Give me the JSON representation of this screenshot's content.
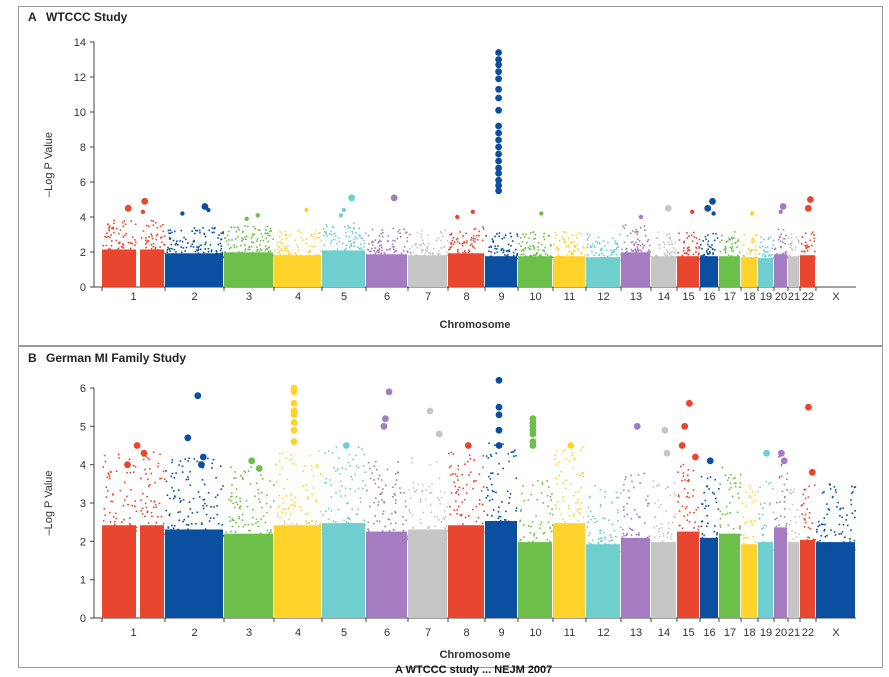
{
  "chart_data": [
    {
      "type": "scatter",
      "letter": "A",
      "title": "WTCCC Study",
      "xlabel": "Chromosome",
      "ylabel": "–Log P Value",
      "ylim": [
        0,
        14
      ],
      "yticks": [
        0,
        2,
        4,
        6,
        8,
        10,
        12,
        14
      ],
      "categories": [
        "1",
        "2",
        "3",
        "4",
        "5",
        "6",
        "7",
        "8",
        "9",
        "10",
        "11",
        "12",
        "13",
        "14",
        "15",
        "16",
        "17",
        "18",
        "19",
        "20",
        "21",
        "22",
        "X"
      ],
      "background_max": [
        3.9,
        3.5,
        3.6,
        3.3,
        3.8,
        3.4,
        3.3,
        3.5,
        3.2,
        3.2,
        3.2,
        3.1,
        3.6,
        3.2,
        3.2,
        3.2,
        3.2,
        3.1,
        3.0,
        3.4,
        3.2,
        3.3,
        0
      ],
      "peaks": [
        {
          "chromosome": "1",
          "values": [
            4.9,
            4.5,
            4.3
          ]
        },
        {
          "chromosome": "2",
          "values": [
            4.6,
            4.4,
            4.2
          ]
        },
        {
          "chromosome": "3",
          "values": [
            4.1,
            3.9
          ]
        },
        {
          "chromosome": "4",
          "values": [
            4.4
          ]
        },
        {
          "chromosome": "5",
          "values": [
            5.1,
            4.4,
            4.1
          ]
        },
        {
          "chromosome": "6",
          "values": [
            5.1
          ]
        },
        {
          "chromosome": "8",
          "values": [
            4.3,
            4.0
          ]
        },
        {
          "chromosome": "9",
          "values": [
            13.4,
            13.0,
            12.7,
            12.3,
            11.9,
            11.3,
            10.8,
            10.1,
            9.2,
            8.8,
            8.4,
            8.0,
            7.6,
            7.2,
            6.8,
            6.5,
            6.1,
            5.8,
            5.5
          ]
        },
        {
          "chromosome": "10",
          "values": [
            4.2
          ]
        },
        {
          "chromosome": "13",
          "values": [
            4.0
          ]
        },
        {
          "chromosome": "14",
          "values": [
            4.5
          ]
        },
        {
          "chromosome": "15",
          "values": [
            4.3
          ]
        },
        {
          "chromosome": "16",
          "values": [
            4.9,
            4.5,
            4.2
          ]
        },
        {
          "chromosome": "18",
          "values": [
            4.2
          ]
        },
        {
          "chromosome": "20",
          "values": [
            4.6,
            4.3
          ]
        },
        {
          "chromosome": "22",
          "values": [
            5.0,
            4.5
          ]
        }
      ]
    },
    {
      "type": "scatter",
      "letter": "B",
      "title": "German MI Family Study",
      "xlabel": "Chromosome",
      "ylabel": "–Log P Value",
      "ylim": [
        0,
        6
      ],
      "yticks": [
        0,
        1,
        2,
        3,
        4,
        5,
        6
      ],
      "categories": [
        "1",
        "2",
        "3",
        "4",
        "5",
        "6",
        "7",
        "8",
        "9",
        "10",
        "11",
        "12",
        "13",
        "14",
        "15",
        "16",
        "17",
        "18",
        "19",
        "20",
        "21",
        "22",
        "X"
      ],
      "background_max": [
        4.4,
        4.2,
        4.0,
        4.4,
        4.5,
        4.1,
        4.2,
        4.4,
        4.6,
        3.6,
        4.5,
        3.5,
        3.8,
        3.6,
        4.1,
        3.8,
        4.0,
        3.5,
        3.6,
        4.3,
        3.6,
        3.7,
        3.6
      ],
      "peaks": [
        {
          "chromosome": "1",
          "values": [
            4.5,
            4.3,
            4.0
          ]
        },
        {
          "chromosome": "2",
          "values": [
            5.8,
            4.7,
            4.2,
            4.0
          ]
        },
        {
          "chromosome": "3",
          "values": [
            4.1,
            3.9
          ]
        },
        {
          "chromosome": "4",
          "values": [
            6.0,
            5.9,
            5.3,
            5.1,
            5.6,
            5.4,
            5.1,
            4.9,
            4.6
          ]
        },
        {
          "chromosome": "5",
          "values": [
            4.5
          ]
        },
        {
          "chromosome": "6",
          "values": [
            5.9,
            5.2,
            5.0
          ]
        },
        {
          "chromosome": "7",
          "values": [
            5.4,
            4.8
          ]
        },
        {
          "chromosome": "8",
          "values": [
            4.5
          ]
        },
        {
          "chromosome": "9",
          "values": [
            6.2,
            5.5,
            5.3,
            4.9,
            4.5
          ]
        },
        {
          "chromosome": "10",
          "values": [
            5.2,
            5.1,
            5.0,
            4.9,
            4.8,
            4.6,
            4.5
          ]
        },
        {
          "chromosome": "11",
          "values": [
            4.5
          ]
        },
        {
          "chromosome": "13",
          "values": [
            5.0
          ]
        },
        {
          "chromosome": "14",
          "values": [
            4.9,
            4.3
          ]
        },
        {
          "chromosome": "15",
          "values": [
            5.6,
            5.0,
            4.5,
            4.2
          ]
        },
        {
          "chromosome": "16",
          "values": [
            4.1
          ]
        },
        {
          "chromosome": "19",
          "values": [
            4.3
          ]
        },
        {
          "chromosome": "20",
          "values": [
            4.3,
            4.1
          ]
        },
        {
          "chromosome": "22",
          "values": [
            5.5,
            3.8
          ]
        }
      ]
    }
  ],
  "colors": [
    "#e8462e",
    "#e8462e",
    "#0a4fa0",
    "#6cc04a",
    "#ffd22c",
    "#6fcfcf",
    "#a57cc1",
    "#c6c6c6",
    "#e8462e",
    "#0a4fa0",
    "#6cc04a",
    "#ffd22c",
    "#6fcfcf",
    "#a57cc1",
    "#c6c6c6",
    "#e8462e",
    "#0a4fa0",
    "#6cc04a",
    "#ffd22c",
    "#6fcfcf",
    "#a57cc1",
    "#c6c6c6",
    "#e8462e",
    "#0a4fa0"
  ],
  "citation": "A WTCCC study ... NEJM 2007"
}
